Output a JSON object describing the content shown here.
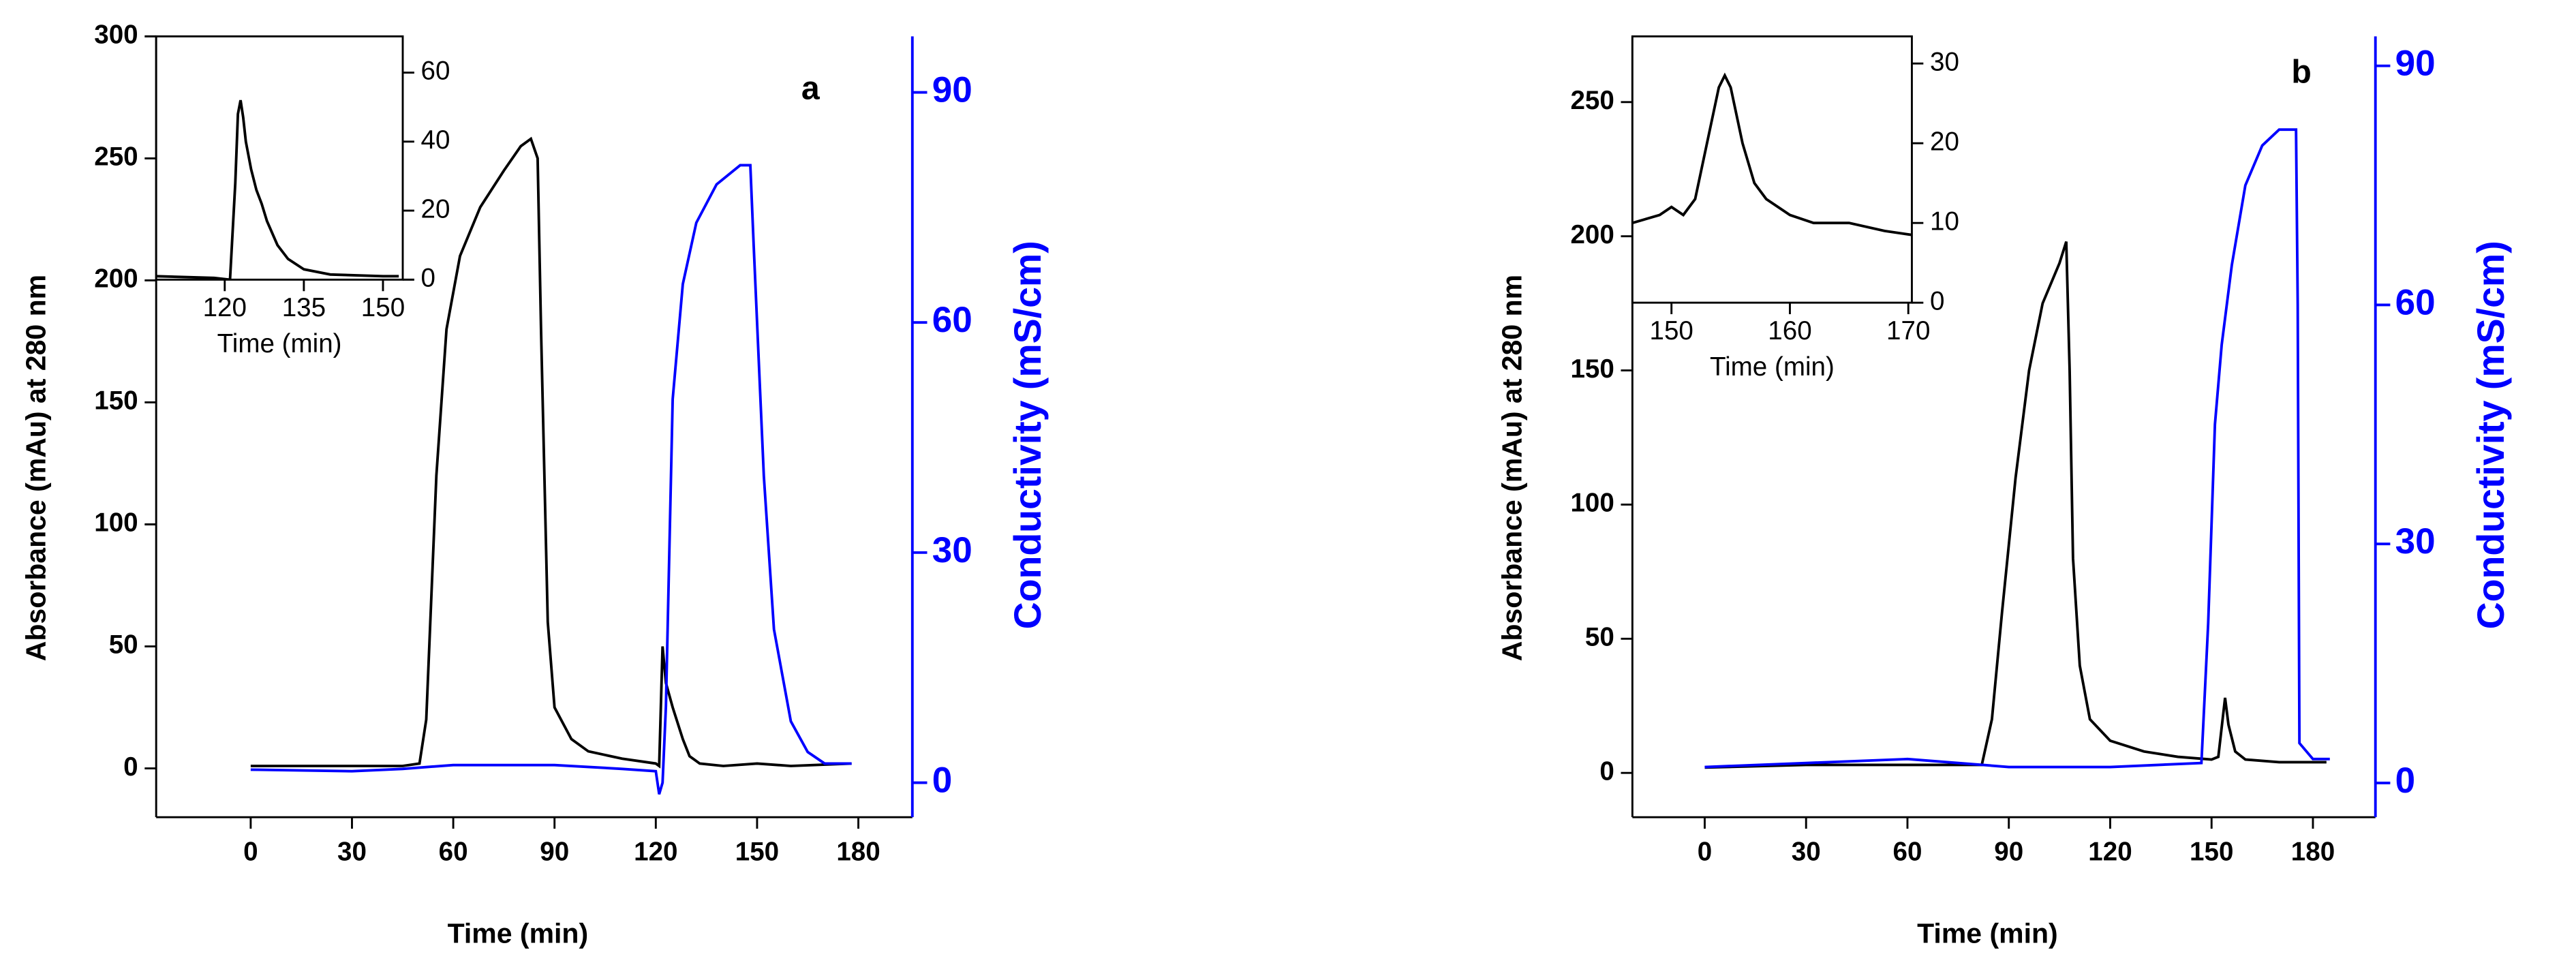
{
  "chart_data": [
    {
      "type": "line",
      "annotation": "a",
      "xlabel": "Time (min)",
      "ylabel": "Absorbance (mAu) at 280 nm",
      "y2label": "Conductivity (mS/cm)",
      "xlim": [
        -28,
        196
      ],
      "ylim": [
        -20,
        300
      ],
      "y2lim": [
        -4.5,
        97.3
      ],
      "xticks": [
        0,
        30,
        60,
        90,
        120,
        150,
        180
      ],
      "yticks": [
        0,
        50,
        100,
        150,
        200,
        250,
        300
      ],
      "y2ticks": [
        0,
        30,
        60,
        90
      ],
      "series": [
        {
          "color": "#000000",
          "x": [
            0,
            45,
            50,
            52,
            55,
            58,
            62,
            68,
            75,
            80,
            83,
            85,
            86,
            88,
            90,
            95,
            100,
            110,
            120,
            121,
            122,
            123,
            125,
            128,
            130,
            133,
            140,
            150,
            160,
            178
          ],
          "values": [
            1,
            1,
            2,
            20,
            120,
            180,
            210,
            230,
            245,
            255,
            258,
            250,
            180,
            60,
            25,
            12,
            7,
            4,
            2,
            1,
            50,
            35,
            25,
            12,
            5,
            2,
            1,
            2,
            1,
            2
          ]
        },
        {
          "color": "#0000ff",
          "axis": "y2",
          "x": [
            0,
            30,
            45,
            60,
            90,
            110,
            120,
            121,
            122,
            123,
            125,
            128,
            132,
            138,
            145,
            148,
            149,
            152,
            155,
            160,
            165,
            170,
            178
          ],
          "values": [
            1.7,
            1.5,
            1.8,
            2.3,
            2.3,
            1.8,
            1.5,
            -1.5,
            0,
            10,
            50,
            65,
            73,
            78,
            80.5,
            80.5,
            70,
            40,
            20,
            8,
            4,
            2.5,
            2.5
          ]
        }
      ]
    },
    {
      "type": "line",
      "xlabel": "Time (min)",
      "y_axis_side": "right",
      "xlim": [
        107,
        153.75
      ],
      "ylim": [
        0,
        70.5
      ],
      "xticks": [
        120,
        135,
        150
      ],
      "yticks": [
        0,
        20,
        40,
        60
      ],
      "series": [
        {
          "color": "#000000",
          "x": [
            107,
            118,
            121,
            122,
            122.5,
            123,
            123.5,
            124,
            125,
            126,
            127,
            128,
            130,
            132,
            135,
            140,
            150,
            153
          ],
          "values": [
            1,
            0.5,
            0,
            28,
            48,
            52,
            47,
            40,
            32,
            26,
            22,
            17,
            10,
            6,
            3,
            1.5,
            1,
            1
          ]
        }
      ]
    },
    {
      "type": "line",
      "annotation": "b",
      "xlabel": "Time (min)",
      "ylabel": "Absorbance (mAu) at 280 nm",
      "y2label": "Conductivity (mS/cm)",
      "xlim": [
        -21.4,
        198.5
      ],
      "ylim": [
        -16.5,
        274.5
      ],
      "y2lim": [
        -4.3,
        93.7
      ],
      "xticks": [
        0,
        30,
        60,
        90,
        120,
        150,
        180
      ],
      "yticks": [
        0,
        50,
        100,
        150,
        200,
        250
      ],
      "y2ticks": [
        0,
        30,
        60,
        90
      ],
      "series": [
        {
          "color": "#000000",
          "x": [
            0,
            30,
            60,
            82,
            85,
            88,
            92,
            96,
            100,
            105,
            107,
            108,
            109,
            111,
            114,
            120,
            130,
            140,
            150,
            152,
            154,
            155,
            157,
            160,
            170,
            180,
            184
          ],
          "values": [
            2,
            3,
            3,
            3,
            20,
            60,
            110,
            150,
            175,
            190,
            198,
            150,
            80,
            40,
            20,
            12,
            8,
            6,
            5,
            6,
            28,
            18,
            8,
            5,
            4,
            4,
            4
          ]
        },
        {
          "color": "#0000ff",
          "axis": "y2",
          "x": [
            0,
            30,
            60,
            90,
            120,
            147,
            149,
            151,
            153,
            156,
            160,
            165,
            170,
            175,
            175.5,
            176,
            180,
            185
          ],
          "values": [
            2,
            2.5,
            3,
            2,
            2,
            2.5,
            20,
            45,
            55,
            65,
            75,
            80,
            82,
            82,
            60,
            5,
            3,
            3
          ]
        }
      ]
    },
    {
      "type": "line",
      "xlabel": "Time (min)",
      "y_axis_side": "right",
      "xlim": [
        146.7,
        170.3
      ],
      "ylim": [
        0,
        33.4
      ],
      "xticks": [
        150,
        160,
        170
      ],
      "yticks": [
        0,
        10,
        20,
        30
      ],
      "series": [
        {
          "color": "#000000",
          "x": [
            146.7,
            149,
            150,
            151,
            152,
            153,
            154,
            154.5,
            155,
            156,
            157,
            158,
            160,
            162,
            165,
            168,
            170.3
          ],
          "values": [
            10,
            11,
            12,
            11,
            13,
            20,
            27,
            28.5,
            27,
            20,
            15,
            13,
            11,
            10,
            10,
            9,
            8.5
          ]
        }
      ]
    }
  ]
}
